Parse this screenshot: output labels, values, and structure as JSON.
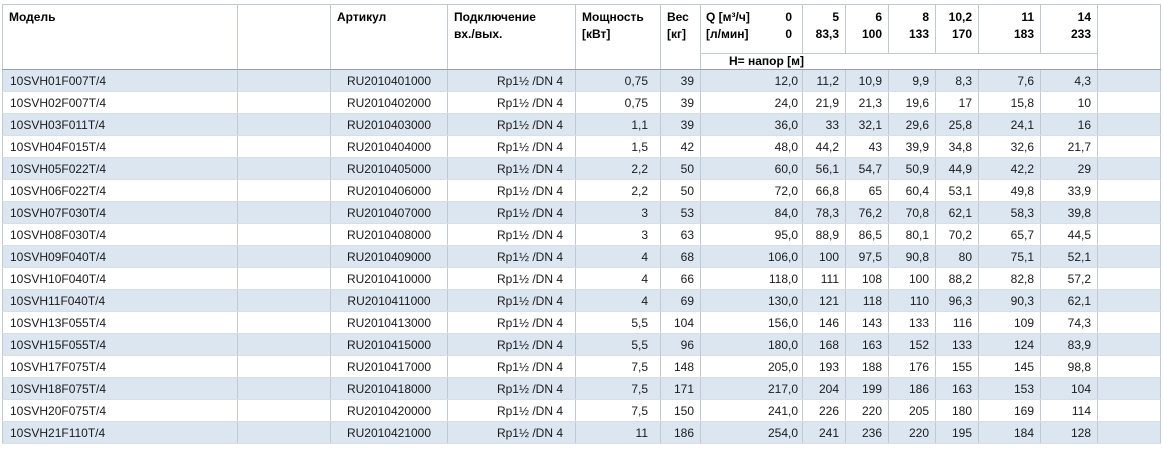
{
  "table": {
    "header": {
      "model": "Модель",
      "article": "Артикул",
      "connection_line1": "Подключение",
      "connection_line2": "вх./вых.",
      "power_line1": "Мощность",
      "power_line2": "[кВт]",
      "weight_line1": "Вес",
      "weight_line2": "[кг]",
      "q_label_m3h": "Q [м³/ч]",
      "q_zero_m3h": "0",
      "q_label_lmin": "[л/мин]",
      "q_zero_lmin": "0",
      "flow_columns": [
        {
          "m3h": "5",
          "lmin": "83,3"
        },
        {
          "m3h": "6",
          "lmin": "100"
        },
        {
          "m3h": "8",
          "lmin": "133"
        },
        {
          "m3h": "10,2",
          "lmin": "170"
        },
        {
          "m3h": "11",
          "lmin": "183"
        },
        {
          "m3h": "14",
          "lmin": "233"
        }
      ],
      "head_units_label": "Н= напор [м]"
    },
    "rows": [
      {
        "model": "10SVH01F007T/4",
        "article": "RU2010401000",
        "connection": "Rp1½ /DN 4",
        "power": "0,75",
        "weight": "39",
        "head": [
          "12,0",
          "11,2",
          "10,9",
          "9,9",
          "8,3",
          "7,6",
          "4,3"
        ]
      },
      {
        "model": "10SVH02F007T/4",
        "article": "RU2010402000",
        "connection": "Rp1½ /DN 4",
        "power": "0,75",
        "weight": "39",
        "head": [
          "24,0",
          "21,9",
          "21,3",
          "19,6",
          "17",
          "15,8",
          "10"
        ]
      },
      {
        "model": "10SVH03F011T/4",
        "article": "RU2010403000",
        "connection": "Rp1½ /DN 4",
        "power": "1,1",
        "weight": "39",
        "head": [
          "36,0",
          "33",
          "32,1",
          "29,6",
          "25,8",
          "24,1",
          "16"
        ]
      },
      {
        "model": "10SVH04F015T/4",
        "article": "RU2010404000",
        "connection": "Rp1½ /DN 4",
        "power": "1,5",
        "weight": "42",
        "head": [
          "48,0",
          "44,2",
          "43",
          "39,9",
          "34,8",
          "32,6",
          "21,7"
        ]
      },
      {
        "model": "10SVH05F022T/4",
        "article": "RU2010405000",
        "connection": "Rp1½ /DN 4",
        "power": "2,2",
        "weight": "50",
        "head": [
          "60,0",
          "56,1",
          "54,7",
          "50,9",
          "44,9",
          "42,2",
          "29"
        ]
      },
      {
        "model": "10SVH06F022T/4",
        "article": "RU2010406000",
        "connection": "Rp1½ /DN 4",
        "power": "2,2",
        "weight": "50",
        "head": [
          "72,0",
          "66,8",
          "65",
          "60,4",
          "53,1",
          "49,8",
          "33,9"
        ]
      },
      {
        "model": "10SVH07F030T/4",
        "article": "RU2010407000",
        "connection": "Rp1½ /DN 4",
        "power": "3",
        "weight": "53",
        "head": [
          "84,0",
          "78,3",
          "76,2",
          "70,8",
          "62,1",
          "58,3",
          "39,8"
        ]
      },
      {
        "model": "10SVH08F030T/4",
        "article": "RU2010408000",
        "connection": "Rp1½ /DN 4",
        "power": "3",
        "weight": "63",
        "head": [
          "95,0",
          "88,9",
          "86,5",
          "80,1",
          "70,2",
          "65,7",
          "44,5"
        ]
      },
      {
        "model": "10SVH09F040T/4",
        "article": "RU2010409000",
        "connection": "Rp1½ /DN 4",
        "power": "4",
        "weight": "68",
        "head": [
          "106,0",
          "100",
          "97,5",
          "90,8",
          "80",
          "75,1",
          "52,1"
        ]
      },
      {
        "model": "10SVH10F040T/4",
        "article": "RU2010410000",
        "connection": "Rp1½ /DN 4",
        "power": "4",
        "weight": "66",
        "head": [
          "118,0",
          "111",
          "108",
          "100",
          "88,2",
          "82,8",
          "57,2"
        ]
      },
      {
        "model": "10SVH11F040T/4",
        "article": "RU2010411000",
        "connection": "Rp1½ /DN 4",
        "power": "4",
        "weight": "69",
        "head": [
          "130,0",
          "121",
          "118",
          "110",
          "96,3",
          "90,3",
          "62,1"
        ]
      },
      {
        "model": "10SVH13F055T/4",
        "article": "RU2010413000",
        "connection": "Rp1½ /DN 4",
        "power": "5,5",
        "weight": "104",
        "head": [
          "156,0",
          "146",
          "143",
          "133",
          "116",
          "109",
          "74,3"
        ]
      },
      {
        "model": "10SVH15F055T/4",
        "article": "RU2010415000",
        "connection": "Rp1½ /DN 4",
        "power": "5,5",
        "weight": "96",
        "head": [
          "180,0",
          "168",
          "163",
          "152",
          "133",
          "124",
          "83,9"
        ]
      },
      {
        "model": "10SVH17F075T/4",
        "article": "RU2010417000",
        "connection": "Rp1½ /DN 4",
        "power": "7,5",
        "weight": "148",
        "head": [
          "205,0",
          "193",
          "188",
          "176",
          "155",
          "145",
          "98,8"
        ]
      },
      {
        "model": "10SVH18F075T/4",
        "article": "RU2010418000",
        "connection": "Rp1½ /DN 4",
        "power": "7,5",
        "weight": "171",
        "head": [
          "217,0",
          "204",
          "199",
          "186",
          "163",
          "153",
          "104"
        ]
      },
      {
        "model": "10SVH20F075T/4",
        "article": "RU2010420000",
        "connection": "Rp1½ /DN 4",
        "power": "7,5",
        "weight": "150",
        "head": [
          "241,0",
          "226",
          "220",
          "205",
          "180",
          "169",
          "114"
        ]
      },
      {
        "model": "10SVH21F110T/4",
        "article": "RU2010421000",
        "connection": "Rp1½ /DN 4",
        "power": "11",
        "weight": "186",
        "head": [
          "254,0",
          "241",
          "236",
          "220",
          "195",
          "184",
          "128"
        ]
      }
    ]
  },
  "colors": {
    "row_shade": "#dce6f1",
    "grid_line": "#c2c9d3",
    "row_line": "#d9dee5",
    "header_separator": "#95a1ad",
    "text": "#1a1a1a"
  }
}
